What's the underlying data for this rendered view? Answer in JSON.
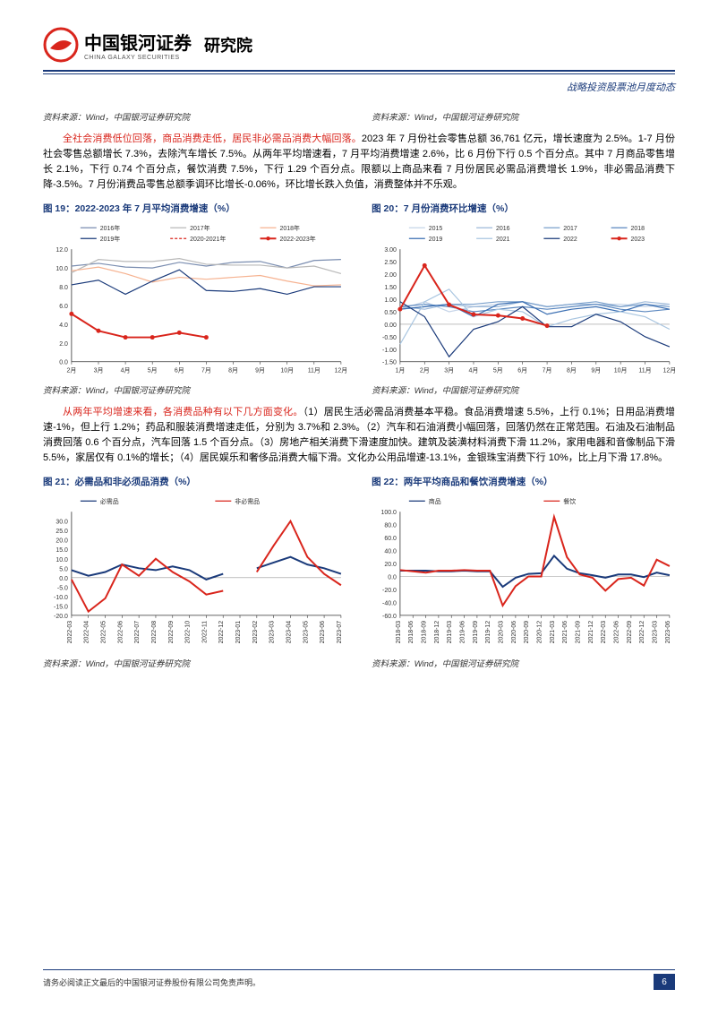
{
  "header": {
    "company_cn": "中国银河证券",
    "company_en": "CHINA GALAXY SECURITIES",
    "institute": "研究院",
    "doc_category": "战略投资股票池月度动态"
  },
  "source_labels": {
    "top_left": "资料来源：Wind，中国银河证券研究院",
    "top_right": "资料来源：Wind，中国银河证券研究院",
    "mid_left": "资料来源：Wind，中国银河证券研究院",
    "mid_right": "资料来源：Wind，中国银河证券研究院",
    "bot_left": "资料来源：Wind，中国银河证券研究院",
    "bot_right": "资料来源：Wind，中国银河证券研究院"
  },
  "para1": {
    "lead": "全社会消费低位回落，商品消费走低，居民非必需品消费大幅回落。",
    "body": "2023 年 7 月份社会零售总额 36,761 亿元，增长速度为 2.5%。1-7 月份社会零售总额增长 7.3%，去除汽车增长 7.5%。从两年平均增速看，7 月平均消费增速 2.6%，比 6 月份下行 0.5 个百分点。其中 7 月商品零售增长 2.1%，下行 0.74 个百分点，餐饮消费 7.5%，下行 1.29 个百分点。限额以上商品来看 7 月份居民必需品消费增长 1.9%，非必需品消费下降-3.5%。7 月份消费品零售总额季调环比增长-0.06%，环比增长跌入负值，消费整体并不乐观。"
  },
  "para2": {
    "lead": "从两年平均增速来看，各消费品种有以下几方面变化。",
    "body": "（1）居民生活必需品消费基本平稳。食品消费增速 5.5%，上行 0.1%；日用品消费增速-1%，但上行 1.2%；药品和服装消费增速走低，分别为 3.7%和 2.3%。（2）汽车和石油消费小幅回落，回落仍然在正常范围。石油及石油制品消费回落 0.6 个百分点，汽车回落 1.5 个百分点。（3）房地产相关消费下滑速度加快。建筑及装潢材料消费下滑 11.2%，家用电器和音像制品下滑 5.5%，家居仅有 0.1%的增长；（4）居民娱乐和奢侈品消费大幅下滑。文化办公用品增速-13.1%，金银珠宝消费下行 10%，比上月下滑 17.8%。"
  },
  "figures": {
    "fig19_title": "图 19：2022-2023 年 7 月平均消费增速（%）",
    "fig20_title": "图 20：7 月份消费环比增速（%）",
    "fig21_title": "图 21：必需品和非必须品消费（%）",
    "fig22_title": "图 22：两年平均商品和餐饮消费增速（%）"
  },
  "chart19": {
    "type": "line",
    "x_labels": [
      "2月",
      "3月",
      "4月",
      "5月",
      "6月",
      "7月",
      "8月",
      "9月",
      "10月",
      "11月",
      "12月"
    ],
    "ylim": [
      0,
      12
    ],
    "ytick_step": 2,
    "ytick_labels": [
      "0.0",
      "2.0",
      "4.0",
      "6.0",
      "8.0",
      "10.0",
      "12.0"
    ],
    "legend": [
      {
        "label": "2016年",
        "color": "#7a8db0"
      },
      {
        "label": "2017年",
        "color": "#b9b9b9"
      },
      {
        "label": "2018年",
        "color": "#f6b290"
      },
      {
        "label": "2019年",
        "color": "#1a3a7a"
      },
      {
        "label": "2020-2021年",
        "color": "#d9251c",
        "dash": true
      },
      {
        "label": "2022-2023年",
        "color": "#d9251c",
        "bold": true,
        "marker": true
      }
    ],
    "series": {
      "2016": [
        10.2,
        10.5,
        10.1,
        10.0,
        10.6,
        10.2,
        10.6,
        10.7,
        10.0,
        10.8,
        10.9
      ],
      "2017": [
        9.5,
        10.9,
        10.7,
        10.7,
        11.0,
        10.4,
        10.3,
        10.3,
        10.0,
        10.2,
        9.4
      ],
      "2018": [
        9.7,
        10.1,
        9.4,
        8.5,
        9.0,
        8.8,
        9.0,
        9.2,
        8.6,
        8.1,
        8.2
      ],
      "2019": [
        8.2,
        8.7,
        7.2,
        8.6,
        9.8,
        7.6,
        7.5,
        7.8,
        7.2,
        8.0,
        8.0
      ],
      "20202021": [
        null,
        null,
        null,
        null,
        null,
        null,
        null,
        null,
        null,
        null,
        null
      ],
      "20222023": [
        5.1,
        3.3,
        2.6,
        2.6,
        3.1,
        2.6,
        null,
        null,
        null,
        null,
        null
      ]
    },
    "background_color": "#ffffff",
    "axis_color": "#333333",
    "label_fontsize": 7
  },
  "chart20": {
    "type": "line",
    "x_labels": [
      "1月",
      "2月",
      "3月",
      "4月",
      "5月",
      "6月",
      "7月",
      "8月",
      "9月",
      "10月",
      "11月",
      "12月"
    ],
    "ylim": [
      -1.5,
      3.0
    ],
    "ytick_step": 0.5,
    "ytick_labels": [
      "-1.50",
      "-1.00",
      "-0.50",
      "0.00",
      "0.50",
      "1.00",
      "1.50",
      "2.00",
      "2.50",
      "3.00"
    ],
    "legend": [
      {
        "label": "2015",
        "color": "#c5d4e8"
      },
      {
        "label": "2016",
        "color": "#9db9d9"
      },
      {
        "label": "2017",
        "color": "#7aa0cc"
      },
      {
        "label": "2018",
        "color": "#5a87bf"
      },
      {
        "label": "2019",
        "color": "#3a6eb2"
      },
      {
        "label": "2021",
        "color": "#a8c5e0"
      },
      {
        "label": "2022",
        "color": "#1a3a7a"
      },
      {
        "label": "2023",
        "color": "#d9251c",
        "bold": true,
        "marker": true
      }
    ],
    "series": {
      "2015": [
        0.6,
        0.9,
        0.5,
        0.7,
        0.8,
        0.9,
        0.7,
        0.8,
        0.8,
        0.8,
        0.7,
        0.8
      ],
      "2016": [
        0.7,
        0.6,
        0.8,
        0.7,
        0.7,
        0.9,
        0.7,
        0.8,
        0.8,
        0.7,
        0.9,
        0.8
      ],
      "2017": [
        0.6,
        0.7,
        0.8,
        0.8,
        0.9,
        0.9,
        0.7,
        0.8,
        0.9,
        0.7,
        0.8,
        0.7
      ],
      "2018": [
        0.7,
        0.8,
        0.7,
        0.5,
        0.6,
        0.7,
        0.6,
        0.7,
        0.8,
        0.6,
        0.5,
        0.6
      ],
      "2019": [
        0.6,
        0.7,
        0.8,
        0.3,
        0.8,
        0.9,
        0.4,
        0.6,
        0.7,
        0.5,
        0.8,
        0.6
      ],
      "2021": [
        -0.8,
        0.9,
        1.4,
        0.3,
        0.6,
        0.5,
        -0.1,
        0.2,
        0.4,
        0.5,
        0.3,
        -0.2
      ],
      "2022": [
        0.9,
        0.3,
        -1.3,
        -0.2,
        0.1,
        0.7,
        -0.1,
        -0.1,
        0.4,
        0.1,
        -0.5,
        -0.9
      ],
      "2023": [
        0.6,
        2.35,
        0.78,
        0.39,
        0.35,
        0.23,
        -0.06,
        null,
        null,
        null,
        null,
        null
      ]
    },
    "background_color": "#ffffff",
    "axis_color": "#333333",
    "label_fontsize": 7
  },
  "chart21": {
    "type": "line",
    "x_labels": [
      "2022-03",
      "2022-04",
      "2022-05",
      "2022-06",
      "2022-07",
      "2022-08",
      "2022-09",
      "2022-10",
      "2022-11",
      "2022-12",
      "2023-01",
      "2023-02",
      "2023-03",
      "2023-04",
      "2023-05",
      "2023-06",
      "2023-07"
    ],
    "ylim": [
      -20,
      35
    ],
    "ytick_step": 5,
    "ytick_labels": [
      "-20.0",
      "-15.0",
      "-10.0",
      "-5.0",
      "0.0",
      "5.0",
      "10.0",
      "15.0",
      "20.0",
      "25.0",
      "30.0"
    ],
    "legend": [
      {
        "label": "必需品",
        "color": "#1a3a7a"
      },
      {
        "label": "非必需品",
        "color": "#d9251c"
      }
    ],
    "series": {
      "necessity": [
        4,
        1,
        3,
        7,
        5,
        4,
        6,
        4,
        -1,
        2,
        null,
        5,
        8,
        11,
        7,
        5,
        2
      ],
      "nonnecessity": [
        -1,
        -18,
        -11,
        7,
        1,
        10,
        3,
        -2,
        -9,
        -7,
        null,
        3,
        17,
        30,
        11,
        2,
        -4
      ]
    },
    "background_color": "#ffffff",
    "axis_color": "#333333",
    "label_fontsize": 7
  },
  "chart22": {
    "type": "line",
    "x_labels": [
      "2018-03",
      "2018-06",
      "2018-09",
      "2018-12",
      "2019-03",
      "2019-06",
      "2019-09",
      "2019-12",
      "2020-03",
      "2020-06",
      "2020-09",
      "2020-12",
      "2021-03",
      "2021-06",
      "2021-09",
      "2021-12",
      "2022-03",
      "2022-06",
      "2022-09",
      "2022-12",
      "2023-03",
      "2023-06"
    ],
    "ylim": [
      -60,
      100
    ],
    "ytick_step": 20,
    "ytick_labels": [
      "-60.0",
      "-40.0",
      "-20.0",
      "0.0",
      "20.0",
      "40.0",
      "60.0",
      "80.0",
      "100.0"
    ],
    "legend": [
      {
        "label": "商品",
        "color": "#1a3a7a"
      },
      {
        "label": "餐饮",
        "color": "#d9251c"
      }
    ],
    "series": {
      "goods": [
        9,
        9,
        9,
        8,
        8,
        9,
        8,
        8,
        -16,
        -2,
        4,
        5,
        32,
        12,
        5,
        2,
        -2,
        3,
        3,
        -1,
        6,
        2
      ],
      "catering": [
        10,
        8,
        6,
        9,
        9,
        10,
        9,
        9,
        -45,
        -15,
        0,
        0,
        92,
        30,
        3,
        -2,
        -22,
        -4,
        -2,
        -14,
        26,
        16
      ]
    },
    "background_color": "#ffffff",
    "axis_color": "#333333",
    "label_fontsize": 7
  },
  "footer": {
    "disclaimer": "请务必阅读正文最后的中国银河证券股份有限公司免责声明。",
    "page_num": "6"
  }
}
